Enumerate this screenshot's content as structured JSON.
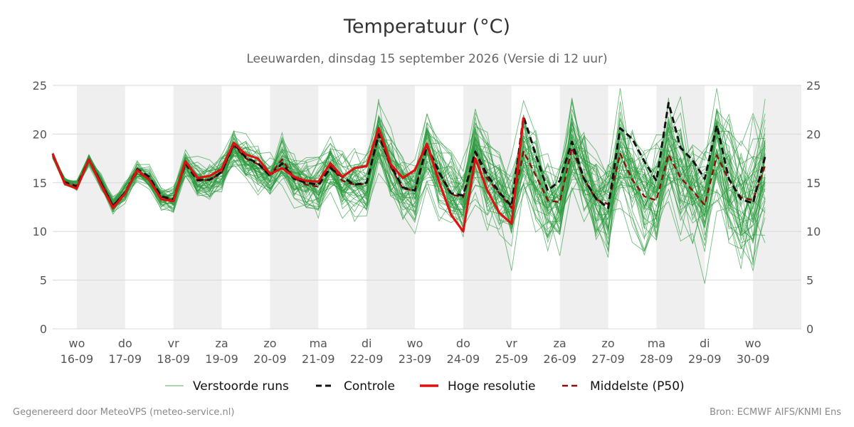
{
  "title": "Temperatuur (°C)",
  "subtitle": "Leeuwarden, dinsdag 15 september 2026 (Versie di 12 uur)",
  "footer": {
    "left": "Gegenereerd door MeteoVPS (meteo-service.nl)",
    "right": "Bron: ECMWF AIFS/KNMI Ens"
  },
  "colors": {
    "ensemble": "#2a9a3c",
    "control": "#111111",
    "hires": "#dd1111",
    "median": "#8b0d0d",
    "band": "#efefef",
    "grid": "#d8d8d8"
  },
  "chart_data": {
    "type": "line",
    "x_start_label": "15-09 12:00",
    "x_step_hours": 6,
    "ylim": [
      0,
      25
    ],
    "yticks": [
      0,
      5,
      10,
      15,
      20,
      25
    ],
    "xlim_hours": [
      0,
      372
    ],
    "days": [
      {
        "day": "wo",
        "date": "16-09"
      },
      {
        "day": "do",
        "date": "17-09"
      },
      {
        "day": "vr",
        "date": "18-09"
      },
      {
        "day": "za",
        "date": "19-09"
      },
      {
        "day": "zo",
        "date": "20-09"
      },
      {
        "day": "ma",
        "date": "21-09"
      },
      {
        "day": "di",
        "date": "22-09"
      },
      {
        "day": "wo",
        "date": "23-09"
      },
      {
        "day": "do",
        "date": "24-09"
      },
      {
        "day": "vr",
        "date": "25-09"
      },
      {
        "day": "za",
        "date": "26-09"
      },
      {
        "day": "zo",
        "date": "27-09"
      },
      {
        "day": "ma",
        "date": "28-09"
      },
      {
        "day": "di",
        "date": "29-09"
      },
      {
        "day": "wo",
        "date": "30-09"
      }
    ],
    "series": [
      {
        "name": "Verstoorde runs",
        "style": "ensemble"
      },
      {
        "name": "Controle",
        "style": "control",
        "values": [
          18,
          15,
          14.6,
          17.4,
          15,
          12.6,
          14,
          16.4,
          15.6,
          13.6,
          13.3,
          17,
          15.3,
          15.3,
          16.1,
          19,
          17.6,
          17,
          15.7,
          17,
          15.4,
          15,
          14.8,
          16.5,
          15.6,
          14.8,
          15,
          20,
          16.8,
          14.5,
          14.2,
          18.8,
          16.1,
          13.9,
          13.7,
          18.2,
          15.8,
          14,
          12.6,
          21.8,
          17.9,
          14.2,
          15.2,
          19.2,
          15.4,
          13.4,
          12.4,
          20.6,
          19.5,
          17.2,
          15.2,
          23.2,
          18.6,
          17.3,
          15.4,
          20.9,
          15.4,
          13.3,
          12.9,
          17.7
        ]
      },
      {
        "name": "Hoge resolutie",
        "style": "hires",
        "values": [
          18,
          14.9,
          14.4,
          17.4,
          14.8,
          12.4,
          13.9,
          16.3,
          15.3,
          13.3,
          13.1,
          17.2,
          15.5,
          15.7,
          16.4,
          19.1,
          17.9,
          17.5,
          15.9,
          16.5,
          15.6,
          15.2,
          15.1,
          17,
          15.6,
          16.5,
          16.7,
          20.6,
          16.9,
          15.5,
          16.3,
          19,
          15.1,
          11.7,
          10,
          17.5,
          14.2,
          11.9,
          10.8,
          21.7
        ]
      },
      {
        "name": "Middelste (P50)",
        "style": "median",
        "values": [
          17.8,
          15.1,
          14.7,
          17.4,
          15.1,
          12.7,
          14,
          16.1,
          15.4,
          13.5,
          13.2,
          16.9,
          15.2,
          15.3,
          16,
          18.8,
          17.5,
          16.9,
          15.8,
          17.4,
          15.5,
          14.8,
          14.6,
          16.7,
          15.2,
          14.8,
          14.9,
          19.9,
          16.6,
          14.4,
          14.2,
          18.7,
          16,
          13.8,
          13.5,
          18.1,
          15.4,
          13.9,
          12.4,
          18.2,
          15.8,
          13.2,
          13,
          18.6,
          15.4,
          13.3,
          12.8,
          18,
          15.3,
          13.6,
          13.2,
          17.9,
          15.5,
          14.2,
          12.7,
          17.8,
          15.3,
          13.5,
          13.2,
          16.8
        ]
      }
    ]
  },
  "legend": {
    "ensemble": "Verstoorde runs",
    "control": "Controle",
    "hires": "Hoge resolutie",
    "median": "Middelste (P50)"
  }
}
